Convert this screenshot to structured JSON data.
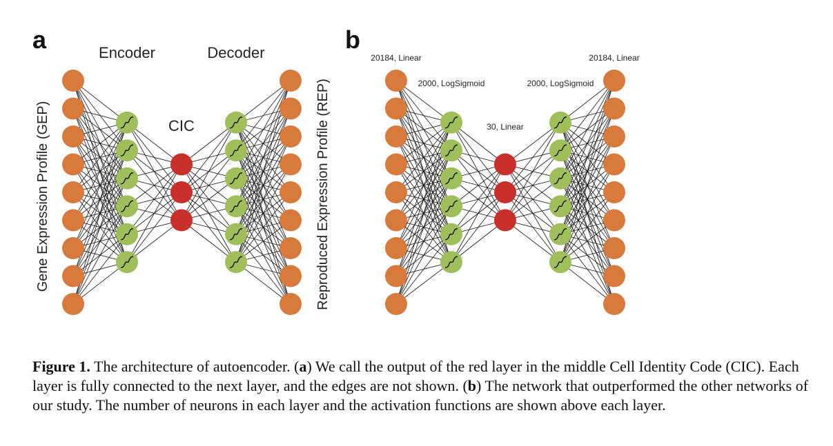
{
  "panel_a": {
    "letter": "a",
    "encoder_label": "Encoder",
    "decoder_label": "Decoder",
    "cic_label": "CIC",
    "gep_label": "Gene Expression Profile (GEP)",
    "rep_label": "Reproduced Expression Profile (REP)",
    "layers": [
      {
        "count": 9,
        "kind": "input"
      },
      {
        "count": 6,
        "kind": "hidden"
      },
      {
        "count": 3,
        "kind": "code"
      },
      {
        "count": 6,
        "kind": "hidden"
      },
      {
        "count": 9,
        "kind": "output"
      }
    ]
  },
  "panel_b": {
    "letter": "b",
    "layer_labels": {
      "input": "20184, Linear",
      "enc_hidden": "2000, LogSigmoid",
      "code": "30, Linear",
      "dec_hidden": "2000, LogSigmoid",
      "output": "20184, Linear"
    },
    "layers": [
      {
        "count": 9,
        "kind": "input"
      },
      {
        "count": 6,
        "kind": "hidden"
      },
      {
        "count": 3,
        "kind": "code"
      },
      {
        "count": 6,
        "kind": "hidden"
      },
      {
        "count": 9,
        "kind": "output"
      }
    ]
  },
  "colors": {
    "input_output": "#d87a3b",
    "hidden": "#9ebf5a",
    "code": "#c9302c"
  },
  "caption": {
    "fig_label": "Figure 1.",
    "text1": " The architecture of autoencoder. (",
    "a": "a",
    "text2": ") We call the output of the red layer in the middle Cell Identity Code (CIC). Each layer is fully connected to the next layer, and the edges are not shown. (",
    "b": "b",
    "text3": ") The network that outperformed the other networks of our study. The number of neurons in each layer and the activation functions are shown above each layer."
  }
}
